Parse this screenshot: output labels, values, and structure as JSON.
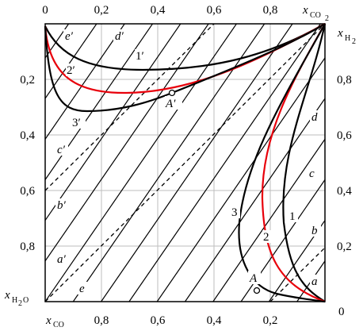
{
  "axes": {
    "top": {
      "label": "x",
      "sub": "CO",
      "sub2": "2",
      "ticks": [
        "0",
        "0,2",
        "0,4",
        "0,6",
        "0,8"
      ]
    },
    "right": {
      "label": "x",
      "sub": "H",
      "sub2": "2",
      "ticks": [
        "0,8",
        "0,6",
        "0,4",
        "0,2",
        "0"
      ]
    },
    "left": {
      "label": "x",
      "sub": "H",
      "sub2": "2",
      "sub3": "O",
      "ticks": [
        "0,2",
        "0,4",
        "0,6",
        "0,8"
      ]
    },
    "bottom": {
      "label": "x",
      "sub": "CO",
      "ticks": [
        "0,8",
        "0,6",
        "0,4",
        "0,2"
      ]
    }
  },
  "regions": {
    "e_prime": "e′",
    "d_prime": "d′",
    "c_prime": "c′",
    "b_prime": "b′",
    "a_prime": "a′",
    "e": "e",
    "d": "d",
    "c": "c",
    "b": "b",
    "a": "a"
  },
  "curves": {
    "c1p": "1′",
    "c2p": "2′",
    "c3p": "3′",
    "c1": "1",
    "c2": "2",
    "c3": "3"
  },
  "points": {
    "A_prime": "A′",
    "A": "A"
  },
  "colors": {
    "frame": "#000000",
    "hatch": "#000000",
    "grid": "#bdbdbd",
    "curve_red": "#e8000b"
  }
}
